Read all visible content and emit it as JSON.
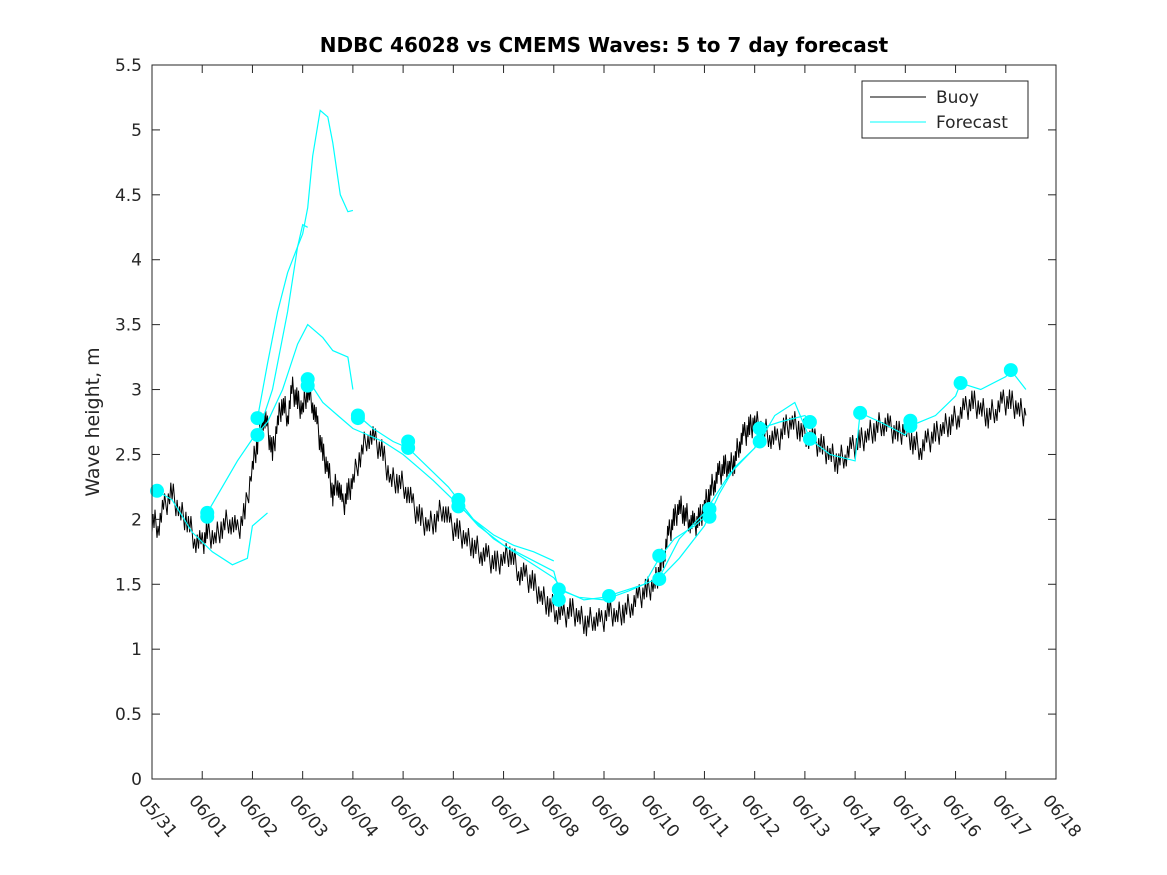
{
  "chart_data": {
    "type": "line",
    "title": "NDBC 46028 vs CMEMS Waves: 5 to 7 day forecast",
    "xlabel": "",
    "ylabel": "Wave height, m",
    "xlim": [
      "05/31",
      "06/18"
    ],
    "ylim": [
      0,
      5.5
    ],
    "x_ticks": [
      "05/31",
      "06/01",
      "06/02",
      "06/03",
      "06/04",
      "06/05",
      "06/06",
      "06/07",
      "06/08",
      "06/09",
      "06/10",
      "06/11",
      "06/12",
      "06/13",
      "06/14",
      "06/15",
      "06/16",
      "06/17",
      "06/18"
    ],
    "y_ticks": [
      "0",
      "0.5",
      "1",
      "1.5",
      "2",
      "2.5",
      "3",
      "3.5",
      "4",
      "4.5",
      "5",
      "5.5"
    ],
    "grid": false,
    "legend": {
      "placement": "top-right",
      "entries": [
        "Buoy",
        "Forecast"
      ]
    },
    "colors": {
      "buoy": "#000000",
      "forecast": "#00ffff"
    },
    "series": [
      {
        "name": "Buoy",
        "x_days": [
          0,
          0.12,
          0.25,
          0.4,
          0.55,
          0.7,
          0.85,
          1.0,
          1.1,
          1.25,
          1.4,
          1.55,
          1.7,
          1.85,
          2.0,
          2.1,
          2.2,
          2.3,
          2.4,
          2.5,
          2.6,
          2.7,
          2.8,
          2.9,
          3.0,
          3.1,
          3.2,
          3.3,
          3.4,
          3.5,
          3.6,
          3.7,
          3.8,
          3.9,
          4.0,
          4.15,
          4.3,
          4.45,
          4.6,
          4.75,
          4.9,
          5.05,
          5.2,
          5.35,
          5.5,
          5.65,
          5.8,
          5.95,
          6.1,
          6.25,
          6.4,
          6.55,
          6.7,
          6.85,
          7.0,
          7.15,
          7.3,
          7.45,
          7.6,
          7.75,
          7.9,
          8.05,
          8.2,
          8.35,
          8.5,
          8.65,
          8.8,
          8.95,
          9.1,
          9.25,
          9.4,
          9.55,
          9.7,
          9.85,
          10.0,
          10.1,
          10.2,
          10.3,
          10.4,
          10.5,
          10.6,
          10.7,
          10.8,
          10.9,
          11.0,
          11.1,
          11.2,
          11.3,
          11.4,
          11.5,
          11.6,
          11.7,
          11.8,
          11.9,
          12.0,
          12.15,
          12.3,
          12.45,
          12.6,
          12.75,
          12.9,
          13.05,
          13.2,
          13.35,
          13.5,
          13.65,
          13.8,
          13.95,
          14.1,
          14.25,
          14.4,
          14.55,
          14.7,
          14.85,
          15.0,
          15.15,
          15.3,
          15.45,
          15.6,
          15.75,
          15.9,
          16.05,
          16.2,
          16.35,
          16.5,
          16.65,
          16.8,
          16.95,
          17.1,
          17.25,
          17.4
        ],
        "values": [
          2.0,
          1.95,
          2.1,
          2.2,
          2.05,
          2.0,
          1.85,
          1.8,
          1.9,
          1.85,
          1.95,
          2.0,
          1.9,
          2.05,
          2.4,
          2.6,
          2.8,
          2.7,
          2.5,
          2.75,
          2.9,
          2.8,
          3.0,
          2.9,
          2.85,
          3.0,
          2.9,
          2.7,
          2.5,
          2.4,
          2.2,
          2.3,
          2.1,
          2.2,
          2.3,
          2.5,
          2.65,
          2.6,
          2.5,
          2.3,
          2.3,
          2.25,
          2.1,
          2.0,
          1.95,
          2.0,
          2.1,
          1.95,
          1.9,
          1.85,
          1.8,
          1.75,
          1.7,
          1.65,
          1.7,
          1.75,
          1.6,
          1.55,
          1.5,
          1.4,
          1.35,
          1.3,
          1.25,
          1.3,
          1.25,
          1.2,
          1.25,
          1.2,
          1.3,
          1.25,
          1.3,
          1.35,
          1.4,
          1.45,
          1.5,
          1.6,
          1.75,
          1.9,
          2.0,
          2.1,
          2.05,
          2.0,
          1.95,
          2.0,
          2.1,
          2.2,
          2.3,
          2.35,
          2.4,
          2.4,
          2.45,
          2.6,
          2.65,
          2.7,
          2.75,
          2.7,
          2.65,
          2.6,
          2.7,
          2.75,
          2.7,
          2.65,
          2.6,
          2.55,
          2.5,
          2.45,
          2.5,
          2.55,
          2.6,
          2.65,
          2.7,
          2.75,
          2.7,
          2.65,
          2.7,
          2.6,
          2.55,
          2.6,
          2.65,
          2.7,
          2.75,
          2.8,
          2.85,
          2.9,
          2.85,
          2.8,
          2.85,
          2.9,
          2.9,
          2.85,
          2.8
        ]
      },
      {
        "name": "Forecast",
        "segments": [
          {
            "x_days": [
              0.1,
              0.4,
              0.8,
              1.2,
              1.6,
              1.9,
              2.0,
              2.3
            ],
            "values": [
              2.22,
              2.15,
              1.9,
              1.75,
              1.65,
              1.7,
              1.95,
              2.05
            ]
          },
          {
            "x_days": [
              1.1,
              1.4,
              1.7,
              2.0,
              2.3,
              2.6,
              2.9,
              3.1,
              3.4,
              3.6,
              3.9,
              4.0
            ],
            "values": [
              2.05,
              2.25,
              2.45,
              2.62,
              2.75,
              3.0,
              3.35,
              3.5,
              3.4,
              3.3,
              3.25,
              3.0
            ]
          },
          {
            "x_days": [
              2.1,
              2.4,
              2.7,
              2.9,
              3.0,
              3.1,
              3.2,
              3.35,
              3.5,
              3.6,
              3.75,
              3.9,
              4.0
            ],
            "values": [
              2.65,
              3.0,
              3.6,
              4.1,
              4.2,
              4.4,
              4.8,
              5.15,
              5.1,
              4.9,
              4.5,
              4.37,
              4.38
            ]
          },
          {
            "x_days": [
              2.1,
              2.3,
              2.5,
              2.7,
              2.9,
              3.0,
              3.1
            ],
            "values": [
              2.78,
              3.2,
              3.6,
              3.9,
              4.1,
              4.27,
              4.25
            ]
          },
          {
            "x_days": [
              3.1,
              3.4,
              3.7,
              4.0,
              4.3,
              4.6,
              5.0,
              5.3,
              5.6,
              6.0,
              6.4,
              6.8,
              7.2,
              7.6,
              8.0
            ],
            "values": [
              3.08,
              2.9,
              2.8,
              2.7,
              2.65,
              2.6,
              2.5,
              2.4,
              2.3,
              2.15,
              2.0,
              1.88,
              1.8,
              1.75,
              1.68
            ]
          },
          {
            "x_days": [
              4.1,
              4.4,
              4.8,
              5.1,
              5.5,
              5.9,
              6.1,
              6.4,
              6.8,
              7.2,
              7.6,
              8.0,
              8.2,
              8.6,
              9.0,
              9.4,
              9.8,
              10.1,
              10.4,
              10.8,
              11.1
            ],
            "values": [
              2.8,
              2.7,
              2.6,
              2.55,
              2.4,
              2.25,
              2.15,
              2.0,
              1.85,
              1.75,
              1.65,
              1.55,
              1.45,
              1.38,
              1.4,
              1.45,
              1.5,
              1.7,
              1.85,
              1.95,
              2.05
            ]
          },
          {
            "x_days": [
              6.1,
              6.5,
              7.0,
              7.5,
              8.0,
              8.1,
              8.5,
              9.0,
              9.5,
              10.1,
              10.5,
              11.0,
              11.5,
              12.0,
              12.1,
              12.5,
              13.0,
              13.1
            ],
            "values": [
              2.12,
              1.95,
              1.8,
              1.7,
              1.6,
              1.46,
              1.4,
              1.38,
              1.45,
              1.55,
              1.85,
              2.05,
              2.35,
              2.55,
              2.7,
              2.75,
              2.8,
              2.75
            ]
          },
          {
            "x_days": [
              10.1,
              10.5,
              11.0,
              11.3,
              11.6,
              12.0,
              12.1,
              12.4,
              12.8,
              13.1,
              13.5,
              14.0,
              14.1,
              14.5,
              15.0,
              15.1,
              15.6,
              16.0,
              16.1,
              16.5,
              17.0,
              17.1,
              17.4
            ],
            "values": [
              1.54,
              1.7,
              1.95,
              2.2,
              2.4,
              2.55,
              2.6,
              2.8,
              2.9,
              2.62,
              2.5,
              2.45,
              2.82,
              2.75,
              2.65,
              2.72,
              2.8,
              2.95,
              3.05,
              3.0,
              3.1,
              3.15,
              3.0
            ]
          }
        ],
        "markers": {
          "x_days": [
            0.1,
            1.1,
            1.1,
            2.1,
            2.1,
            3.1,
            3.1,
            4.1,
            4.1,
            5.1,
            5.1,
            6.1,
            6.1,
            8.1,
            8.1,
            9.1,
            10.1,
            10.1,
            11.1,
            11.1,
            12.1,
            12.1,
            13.1,
            13.1,
            14.1,
            15.1,
            15.1,
            16.1,
            17.1
          ],
          "values": [
            2.22,
            2.05,
            2.02,
            2.78,
            2.65,
            3.08,
            3.03,
            2.8,
            2.78,
            2.6,
            2.55,
            2.15,
            2.1,
            1.46,
            1.38,
            1.41,
            1.72,
            1.54,
            2.08,
            2.02,
            2.7,
            2.6,
            2.75,
            2.62,
            2.82,
            2.76,
            2.72,
            3.05,
            3.15
          ]
        }
      }
    ]
  }
}
